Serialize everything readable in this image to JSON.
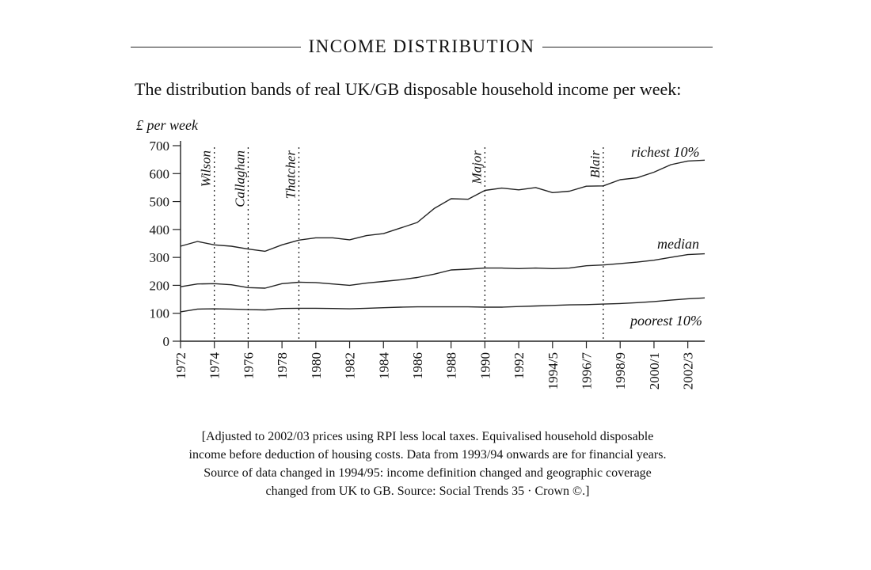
{
  "heading": "INCOME DISTRIBUTION",
  "subtitle": "The distribution bands of real UK/GB disposable household income per week:",
  "footnote": [
    "[Adjusted to 2002/03 prices using RPI less local taxes. Equivalised household disposable",
    "income before deduction of housing costs. Data from 1993/94 onwards are for financial years.",
    "Source of data changed in 1994/95: income definition changed and geographic coverage",
    "changed from UK to GB. Source: Social Trends 35 · Crown ©.]"
  ],
  "chart_data": {
    "type": "line",
    "title": "",
    "xlabel": "",
    "ylabel": "£ per week",
    "ylim": [
      0,
      700
    ],
    "yticks": [
      0,
      100,
      200,
      300,
      400,
      500,
      600,
      700
    ],
    "x": [
      1972,
      1973,
      1974,
      1975,
      1976,
      1977,
      1978,
      1979,
      1980,
      1981,
      1982,
      1983,
      1984,
      1985,
      1986,
      1987,
      1988,
      1989,
      1990,
      1991,
      1992,
      1993,
      1994,
      1995,
      1996,
      1997,
      1998,
      1999,
      2000,
      2001,
      2002,
      2003
    ],
    "xlim": [
      1972,
      2003
    ],
    "xticks": [
      {
        "x": 1972,
        "label": "1972"
      },
      {
        "x": 1974,
        "label": "1974"
      },
      {
        "x": 1976,
        "label": "1976"
      },
      {
        "x": 1978,
        "label": "1978"
      },
      {
        "x": 1980,
        "label": "1980"
      },
      {
        "x": 1982,
        "label": "1982"
      },
      {
        "x": 1984,
        "label": "1984"
      },
      {
        "x": 1986,
        "label": "1986"
      },
      {
        "x": 1988,
        "label": "1988"
      },
      {
        "x": 1990,
        "label": "1990"
      },
      {
        "x": 1992,
        "label": "1992"
      },
      {
        "x": 1994,
        "label": "1994/5"
      },
      {
        "x": 1996,
        "label": "1996/7"
      },
      {
        "x": 1998,
        "label": "1998/9"
      },
      {
        "x": 2000,
        "label": "2000/1"
      },
      {
        "x": 2002,
        "label": "2002/3"
      }
    ],
    "series": [
      {
        "name": "richest 10%",
        "values": [
          340,
          357,
          345,
          340,
          330,
          322,
          345,
          362,
          370,
          370,
          363,
          378,
          385,
          405,
          425,
          475,
          510,
          508,
          540,
          548,
          542,
          550,
          532,
          537,
          555,
          556,
          578,
          585,
          605,
          632,
          645,
          648
        ]
      },
      {
        "name": "median",
        "values": [
          195,
          205,
          206,
          202,
          192,
          190,
          206,
          211,
          210,
          205,
          200,
          208,
          214,
          220,
          228,
          240,
          255,
          258,
          262,
          262,
          260,
          262,
          260,
          262,
          270,
          273,
          278,
          283,
          290,
          300,
          310,
          313
        ]
      },
      {
        "name": "poorest 10%",
        "values": [
          105,
          115,
          116,
          115,
          113,
          112,
          117,
          118,
          118,
          117,
          116,
          118,
          120,
          122,
          123,
          123,
          123,
          123,
          122,
          122,
          124,
          126,
          128,
          130,
          131,
          133,
          135,
          138,
          142,
          147,
          152,
          155
        ]
      }
    ],
    "annotations": [
      {
        "x": 1974,
        "label": "Wilson"
      },
      {
        "x": 1976,
        "label": "Callaghan"
      },
      {
        "x": 1979,
        "label": "Thatcher"
      },
      {
        "x": 1990,
        "label": "Major"
      },
      {
        "x": 1997,
        "label": "Blair"
      }
    ],
    "grid": false,
    "legend": "inline"
  }
}
